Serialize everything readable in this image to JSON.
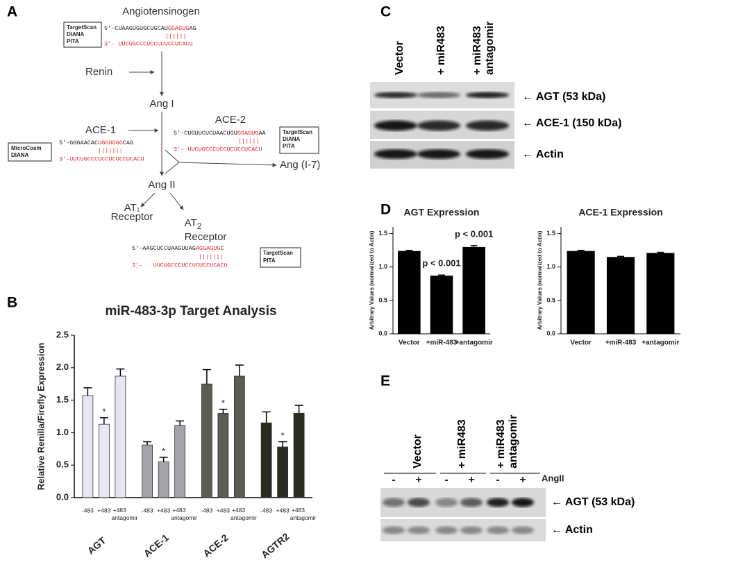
{
  "panel_labels": {
    "a": "A",
    "b": "B",
    "c": "C",
    "d": "D",
    "e": "E"
  },
  "diagram": {
    "angiotensinogen": {
      "title": "Angiotensinogen",
      "tools": [
        "TargetScan",
        "DIANA",
        "PITA"
      ],
      "target": [
        "5'-CUAAGUGUGCUGCAU",
        "GGAGUG",
        "AG"
      ],
      "pairing": "||||||",
      "mirna": "3'- UUCUGCCCUCCUCUCCUCACU"
    },
    "renin": "Renin",
    "ang1": "Ang I",
    "ace1": {
      "title": "ACE-1",
      "tools": [
        "MicroCosm",
        "DIANA"
      ],
      "target": [
        "5'-GGGAACAC",
        "UGGUGGG",
        "CAG"
      ],
      "pairing": "|||||||",
      "mirna": "3'-UUCUGCCCUCCUCUCCUCACU"
    },
    "ace2": {
      "title": "ACE-2",
      "tools": [
        "TargetScan",
        "DIANA",
        "PITA"
      ],
      "target": [
        "5'-CUGUUCUCUAACUGU",
        "GGAGUG",
        "AA"
      ],
      "pairing": "||||||",
      "mirna": "3'- UUCUGCCCUCCUCUCCUCACU"
    },
    "ang17": "Ang (I-7)",
    "ang2": "Ang II",
    "at1": {
      "name": [
        "AT",
        "1"
      ],
      "label": "Receptor"
    },
    "at2": {
      "name": [
        "AT",
        "2"
      ],
      "label": "Receptor",
      "tools": [
        "TargetScan",
        "PITA"
      ],
      "target": [
        "5'-AAGCUCCUAAGUUAG",
        "AGGAGUG",
        "C"
      ],
      "pairing": "|||||||",
      "mirna": "3'-   UUCUGCCCUCCUCUCCUCACU"
    }
  },
  "blot_c": {
    "lanes": [
      [
        "Vector"
      ],
      [
        "+ miR483"
      ],
      [
        "+ miR483",
        "antagomir"
      ]
    ],
    "rows": [
      "← AGT (53 kDa)",
      "← ACE-1 (150 kDa)",
      "← Actin"
    ]
  },
  "blot_e": {
    "lanes": [
      [
        "Vector"
      ],
      [
        "+ miR483"
      ],
      [
        "+ miR483",
        "antagomir"
      ]
    ],
    "treatment": [
      "-",
      "+"
    ],
    "treatment_label": "AngII",
    "rows": [
      "← AGT (53 kDa)",
      "← Actin"
    ]
  },
  "chart_data": [
    {
      "type": "bar",
      "title": "miR-483-3p Target Analysis",
      "y_label": "Relative Renilla/Firefly Expression",
      "categories": [
        "AGT",
        "ACE-1",
        "ACE-2",
        "AGTR2"
      ],
      "category_colors": [
        "#e6e6f5",
        "#a3a3a9",
        "#5c5c54",
        "#2b2b1c"
      ],
      "series": [
        {
          "name": "-483",
          "values": [
            1.57,
            0.81,
            1.75,
            1.15
          ],
          "errors": [
            0.12,
            0.05,
            0.22,
            0.17
          ]
        },
        {
          "name": "+483",
          "values": [
            1.13,
            0.55,
            1.3,
            0.78
          ],
          "errors": [
            0.1,
            0.07,
            0.06,
            0.08
          ],
          "annotations": [
            "*",
            "*",
            "*",
            "*"
          ]
        },
        {
          "name": "+483 antagomir",
          "values": [
            1.87,
            1.11,
            1.87,
            1.3
          ],
          "errors": [
            0.11,
            0.07,
            0.17,
            0.12
          ]
        }
      ],
      "ylim": [
        0,
        2.5
      ],
      "yticks": [
        {
          "value": 0,
          "label": "0.0"
        },
        0.5,
        {
          "value": 1,
          "label": "1.0"
        },
        1.5,
        {
          "value": 2,
          "label": "2.0"
        },
        2.5
      ]
    },
    {
      "type": "bar",
      "title": "AGT Expression",
      "y_label": "Arbitrary Values (normalized to Actin)",
      "categories": [
        "Vector",
        "+miR-483",
        "+antagomir"
      ],
      "values": [
        1.24,
        0.87,
        1.3
      ],
      "errors": [
        0.01,
        0.01,
        0.02
      ],
      "annotations": [
        null,
        "p < 0.001",
        "p < 0.001"
      ],
      "color": "#000000",
      "ylim": [
        0,
        1.6
      ],
      "yticks": [
        {
          "value": 0,
          "label": "0.0"
        },
        0.5,
        {
          "value": 1,
          "label": "1.0"
        },
        1.5
      ]
    },
    {
      "type": "bar",
      "title": "ACE-1 Expression",
      "y_label": "Arbitrary Values (normalized to Actin)",
      "categories": [
        "Vector",
        "+miR-483",
        "+antagomir"
      ],
      "values": [
        1.24,
        1.15,
        1.21
      ],
      "errors": [
        0.01,
        0.01,
        0.01
      ],
      "color": "#000000",
      "ylim": [
        0,
        1.6
      ],
      "yticks": [
        {
          "value": 0,
          "label": "0.0"
        },
        0.5,
        {
          "value": 1,
          "label": "1.0"
        },
        1.5
      ]
    }
  ]
}
